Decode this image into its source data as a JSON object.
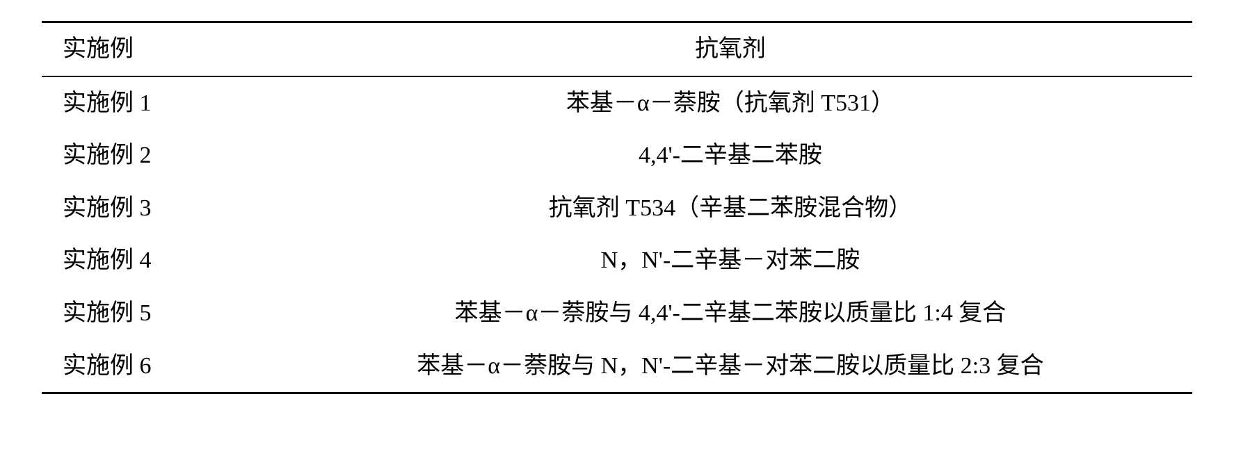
{
  "table": {
    "columns": [
      "实施例",
      "抗氧剂"
    ],
    "rows": [
      [
        "实施例 1",
        "苯基－α－萘胺（抗氧剂 T531）"
      ],
      [
        "实施例 2",
        "4,4'-二辛基二苯胺"
      ],
      [
        "实施例 3",
        "抗氧剂 T534（辛基二苯胺混合物）"
      ],
      [
        "实施例 4",
        "N，N'-二辛基－对苯二胺"
      ],
      [
        "实施例 5",
        "苯基－α－萘胺与 4,4'-二辛基二苯胺以质量比 1:4 复合"
      ],
      [
        "实施例 6",
        "苯基－α－萘胺与 N，N'-二辛基－对苯二胺以质量比 2:3 复合"
      ]
    ],
    "border_color": "#000000",
    "background_color": "#ffffff",
    "text_color": "#000000",
    "font_size": 34,
    "header_border_top_width": 3,
    "header_border_bottom_width": 2,
    "bottom_border_width": 3,
    "col_widths_pct": [
      18,
      82
    ],
    "col_alignments": [
      "left",
      "center"
    ]
  }
}
